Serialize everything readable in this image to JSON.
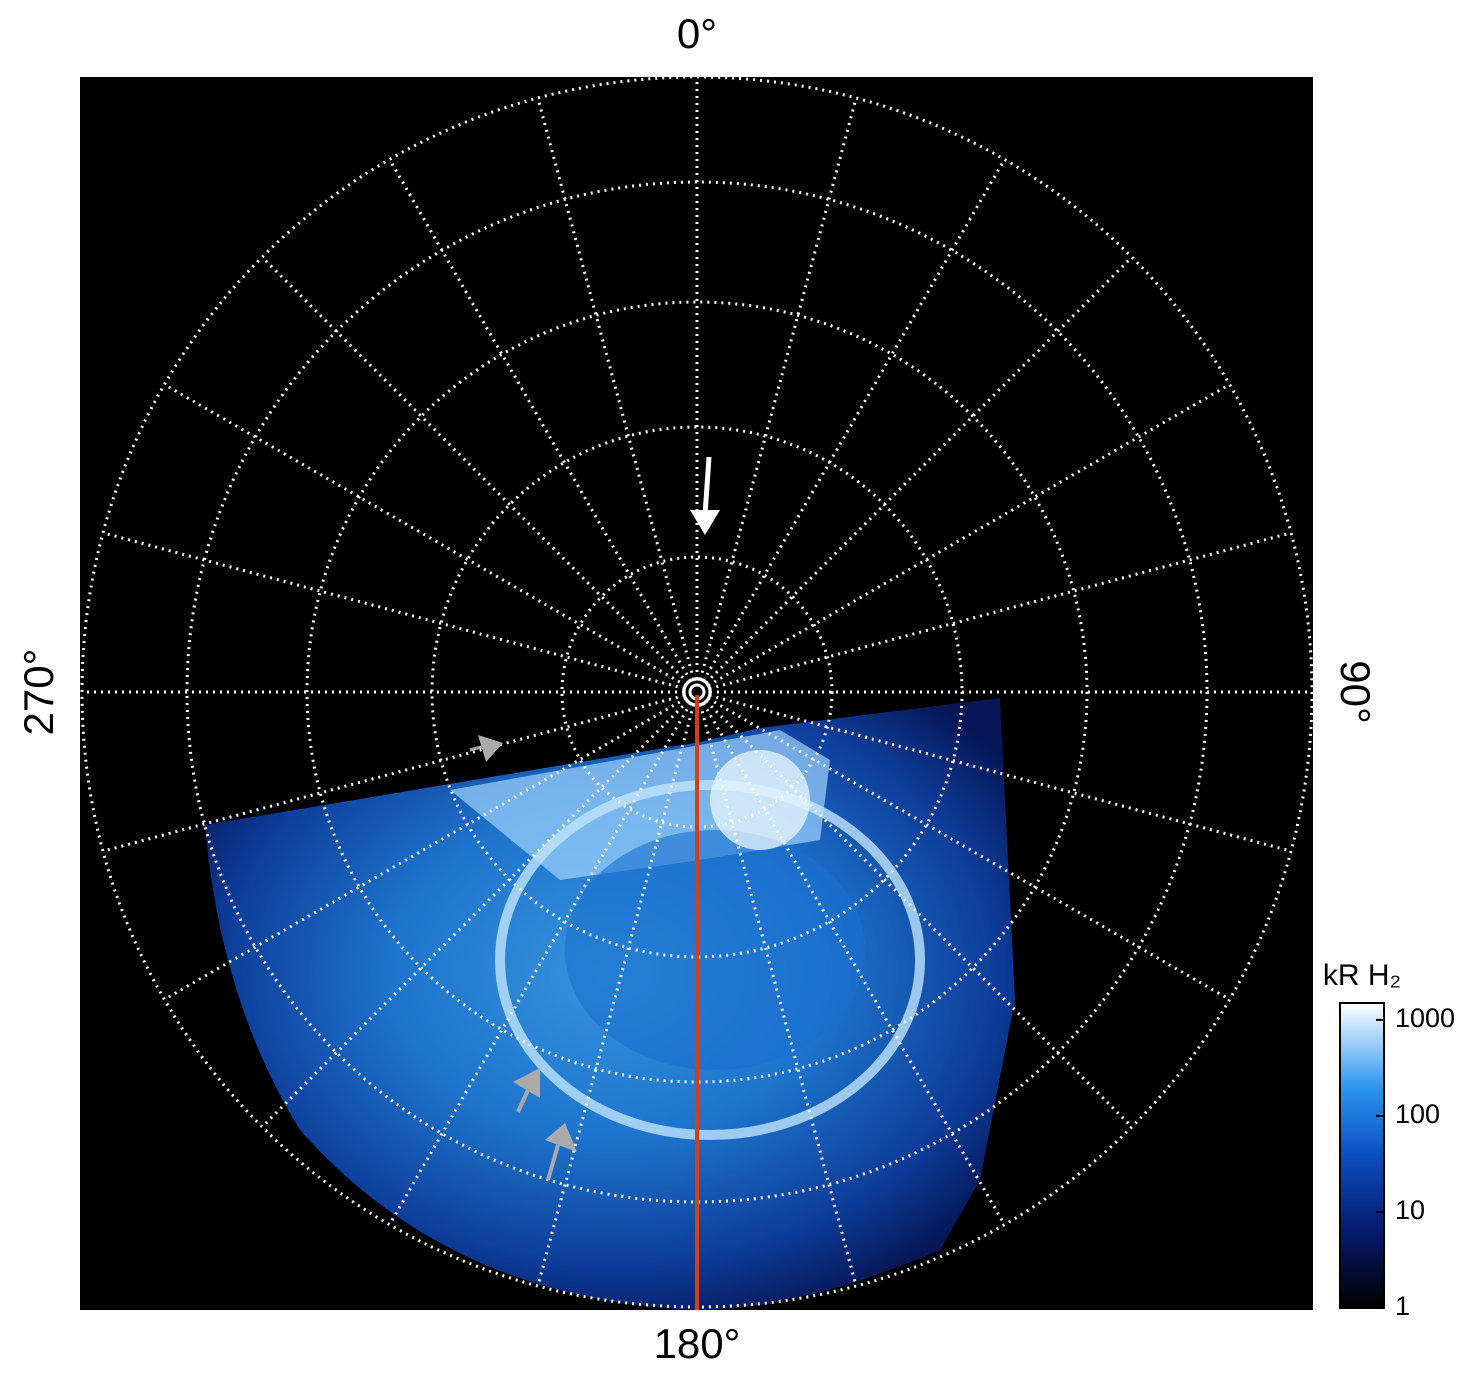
{
  "chart_data": {
    "type": "polar-map",
    "angle_labels": [
      {
        "value": 0,
        "label": "0°"
      },
      {
        "value": 90,
        "label": "90°"
      },
      {
        "value": 180,
        "label": "180°"
      },
      {
        "value": 270,
        "label": "270°"
      }
    ],
    "colorbar": {
      "title": "kR H₂",
      "log": true,
      "lim": [
        1,
        1500
      ],
      "ticks": [
        1,
        10,
        100,
        1000
      ]
    }
  }
}
